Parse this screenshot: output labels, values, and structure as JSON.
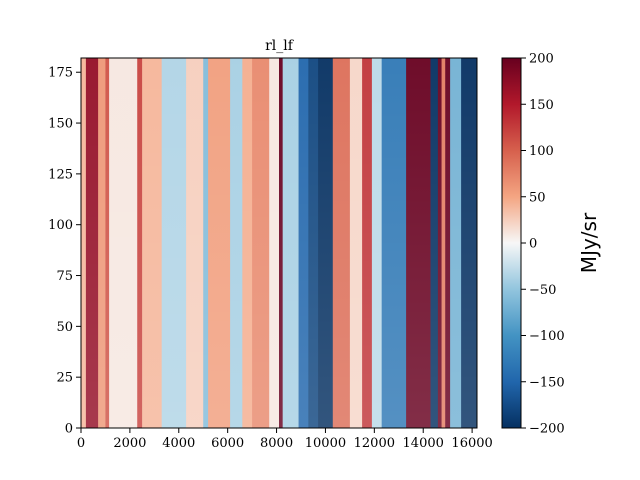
{
  "chart_data": {
    "type": "heatmap",
    "title": "rl_lf",
    "xlabel": "",
    "ylabel": "",
    "xlim": [
      0,
      16200
    ],
    "ylim": [
      0,
      182
    ],
    "x_ticks": [
      0,
      2000,
      4000,
      6000,
      8000,
      10000,
      12000,
      14000,
      16000
    ],
    "y_ticks": [
      0,
      25,
      50,
      75,
      100,
      125,
      150,
      175
    ],
    "colormap": "RdBu_r",
    "colorbar": {
      "label": "MJy/sr",
      "vmin": -200,
      "vmax": 200,
      "ticks": [
        -200,
        -150,
        -100,
        -50,
        0,
        50,
        100,
        150,
        200
      ],
      "tick_labels": [
        "−200",
        "−150",
        "−100",
        "−50",
        "0",
        "50",
        "100",
        "150",
        "200"
      ]
    },
    "column_bands": [
      {
        "x0": 0,
        "x1": 200,
        "value": 40
      },
      {
        "x0": 200,
        "x1": 700,
        "value": 170
      },
      {
        "x0": 700,
        "x1": 1000,
        "value": 60
      },
      {
        "x0": 1000,
        "x1": 1150,
        "value": 110
      },
      {
        "x0": 1150,
        "x1": 2300,
        "value": 10
      },
      {
        "x0": 2300,
        "x1": 2500,
        "value": 120
      },
      {
        "x0": 2500,
        "x1": 3300,
        "value": 40
      },
      {
        "x0": 3300,
        "x1": 4300,
        "value": -35
      },
      {
        "x0": 4300,
        "x1": 5000,
        "value": 25
      },
      {
        "x0": 5000,
        "x1": 5200,
        "value": -60
      },
      {
        "x0": 5200,
        "x1": 6100,
        "value": 55
      },
      {
        "x0": 6100,
        "x1": 6600,
        "value": -40
      },
      {
        "x0": 6600,
        "x1": 7000,
        "value": 45
      },
      {
        "x0": 7000,
        "x1": 7700,
        "value": 70
      },
      {
        "x0": 7700,
        "x1": 8100,
        "value": 10
      },
      {
        "x0": 8100,
        "x1": 8250,
        "value": 200
      },
      {
        "x0": 8250,
        "x1": 8900,
        "value": -40
      },
      {
        "x0": 8900,
        "x1": 9300,
        "value": -150
      },
      {
        "x0": 9300,
        "x1": 9700,
        "value": -180
      },
      {
        "x0": 9700,
        "x1": 10300,
        "value": -200
      },
      {
        "x0": 10300,
        "x1": 11000,
        "value": 90
      },
      {
        "x0": 11000,
        "x1": 11500,
        "value": 20
      },
      {
        "x0": 11500,
        "x1": 11900,
        "value": 130
      },
      {
        "x0": 11900,
        "x1": 12300,
        "value": -30
      },
      {
        "x0": 12300,
        "x1": 13300,
        "value": -130
      },
      {
        "x0": 13300,
        "x1": 14300,
        "value": 200
      },
      {
        "x0": 14300,
        "x1": 14600,
        "value": -200
      },
      {
        "x0": 14600,
        "x1": 14750,
        "value": 200
      },
      {
        "x0": 14750,
        "x1": 14900,
        "value": 80
      },
      {
        "x0": 14900,
        "x1": 15100,
        "value": 200
      },
      {
        "x0": 15100,
        "x1": 15550,
        "value": -70
      },
      {
        "x0": 15550,
        "x1": 16200,
        "value": -200
      }
    ]
  }
}
